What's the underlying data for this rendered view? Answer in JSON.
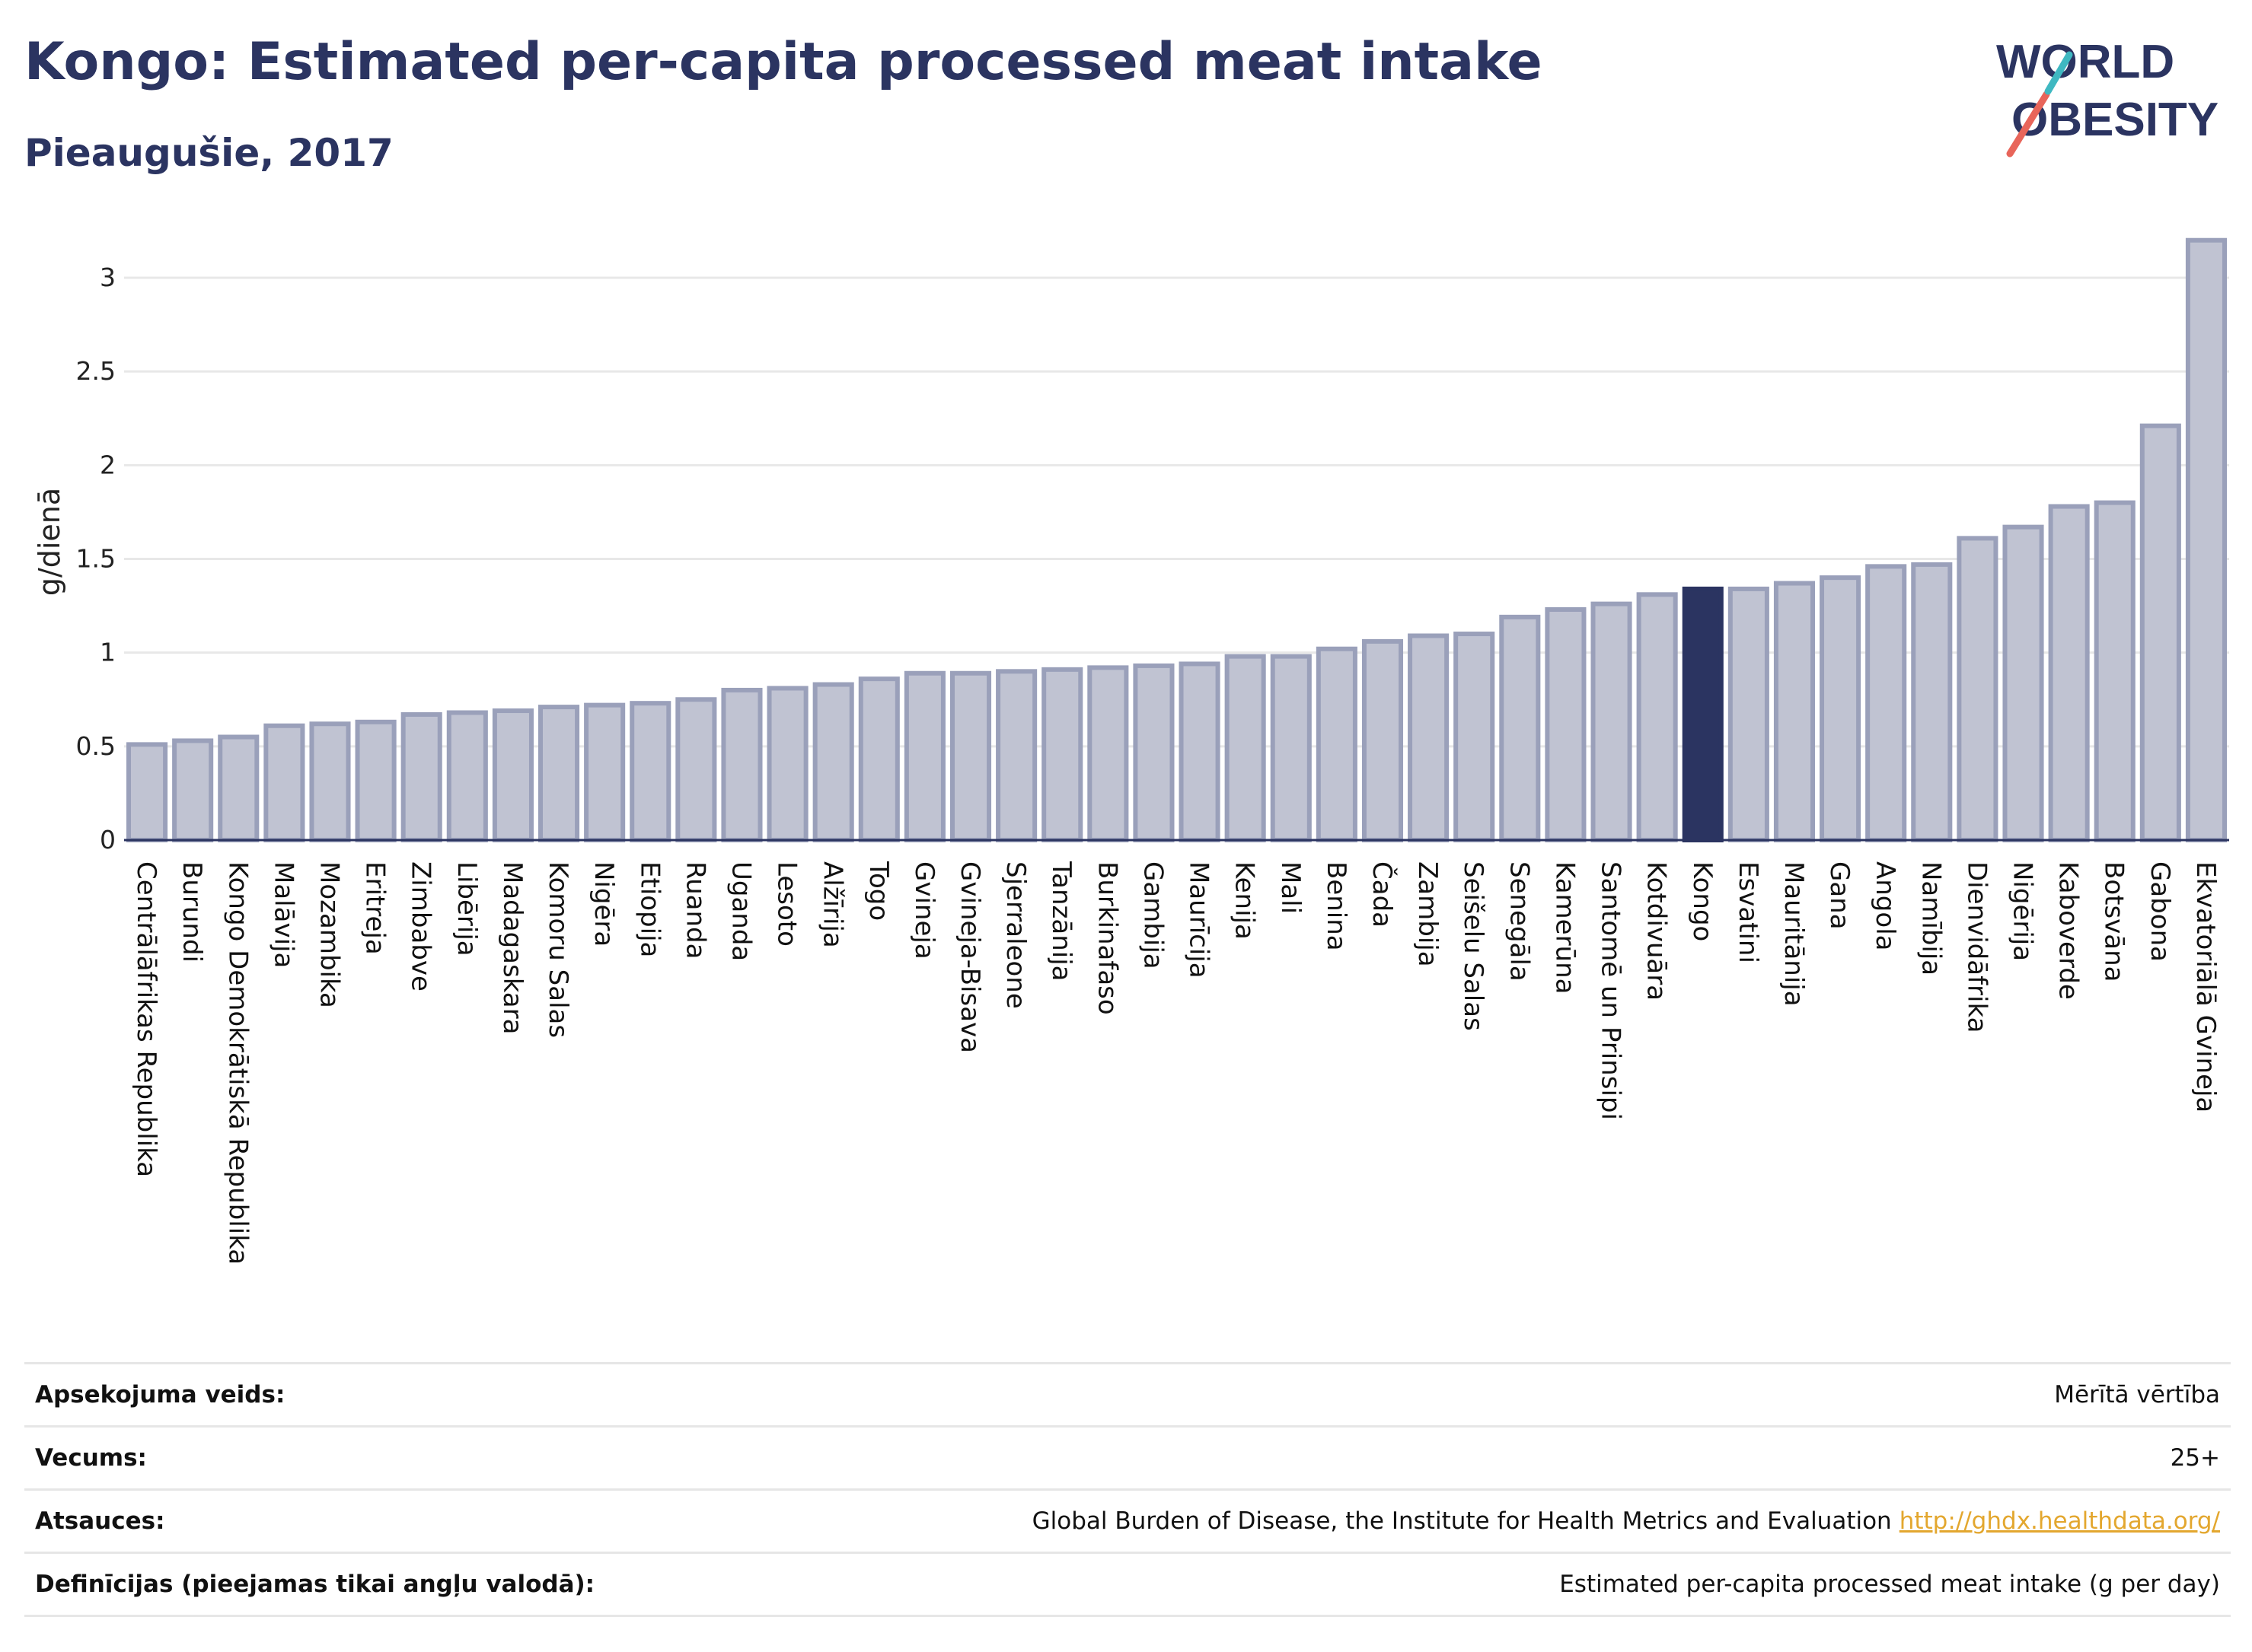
{
  "header": {
    "title": "Kongo: Estimated per-capita processed meat intake",
    "subtitle": "Pieaugušie, 2017"
  },
  "logo": {
    "line1": "WORLD",
    "line2": "OBESITY",
    "colors": {
      "text": "#2b3461",
      "slash_teal": "#3fb8c1",
      "slash_coral": "#e8655a"
    }
  },
  "colors": {
    "bar_fill": "#c0c3d2",
    "bar_stroke": "#9aa0ba",
    "highlight": "#2b3461",
    "grid": "#e8e8e8",
    "axis": "#2b3461"
  },
  "chart_data": {
    "type": "bar",
    "title": "Kongo: Estimated per-capita processed meat intake",
    "subtitle": "Pieaugušie, 2017",
    "xlabel": "",
    "ylabel": "g/dienā",
    "ylim": [
      0,
      3.2
    ],
    "yticks": [
      0,
      0.5,
      1,
      1.5,
      2,
      2.5,
      3
    ],
    "ytick_labels": [
      "0",
      "0.5",
      "1",
      "1.5",
      "2",
      "2.5",
      "3"
    ],
    "grid": true,
    "highlight": "Kongo",
    "categories": [
      "Centrālāfrikas Republika",
      "Burundi",
      "Kongo Demokrātiskā Republika",
      "Malāvija",
      "Mozambika",
      "Eritreja",
      "Zimbabve",
      "Libērija",
      "Madagaskara",
      "Komoru Salas",
      "Nigēra",
      "Etiopija",
      "Ruanda",
      "Uganda",
      "Lesoto",
      "Alžīrija",
      "Togo",
      "Gvineja",
      "Gvineja-Bisava",
      "Sjerraleone",
      "Tanzānija",
      "Burkinafaso",
      "Gambija",
      "Maurīcija",
      "Kenija",
      "Mali",
      "Benina",
      "Čada",
      "Zambija",
      "Seišelu Salas",
      "Senegāla",
      "Kamerūna",
      "Santomē un Prinsipi",
      "Kotdivuāra",
      "Kongo",
      "Esvatini",
      "Mauritānija",
      "Gana",
      "Angola",
      "Namībija",
      "Dienvidāfrika",
      "Nigērija",
      "Kaboverde",
      "Botsvāna",
      "Gabona",
      "Ekvatoriālā Gvineja"
    ],
    "values": [
      0.51,
      0.53,
      0.55,
      0.61,
      0.62,
      0.63,
      0.67,
      0.68,
      0.69,
      0.71,
      0.72,
      0.73,
      0.75,
      0.8,
      0.81,
      0.83,
      0.86,
      0.89,
      0.89,
      0.9,
      0.91,
      0.92,
      0.93,
      0.94,
      0.98,
      0.98,
      1.02,
      1.06,
      1.09,
      1.1,
      1.19,
      1.23,
      1.26,
      1.31,
      1.34,
      1.34,
      1.37,
      1.4,
      1.46,
      1.47,
      1.61,
      1.67,
      1.78,
      1.8,
      2.21,
      3.2
    ]
  },
  "meta": {
    "rows": [
      {
        "label": "Apsekojuma veids:",
        "value": "Mērītā vērtība",
        "link": ""
      },
      {
        "label": "Vecums:",
        "value": "25+",
        "link": ""
      },
      {
        "label": "Atsauces:",
        "value": "Global Burden of Disease, the Institute for Health Metrics and Evaluation",
        "link": "http://ghdx.healthdata.org/"
      },
      {
        "label": "Definīcijas (pieejamas tikai angļu valodā):",
        "value": "Estimated per-capita processed meat intake (g per day)",
        "link": ""
      }
    ]
  }
}
